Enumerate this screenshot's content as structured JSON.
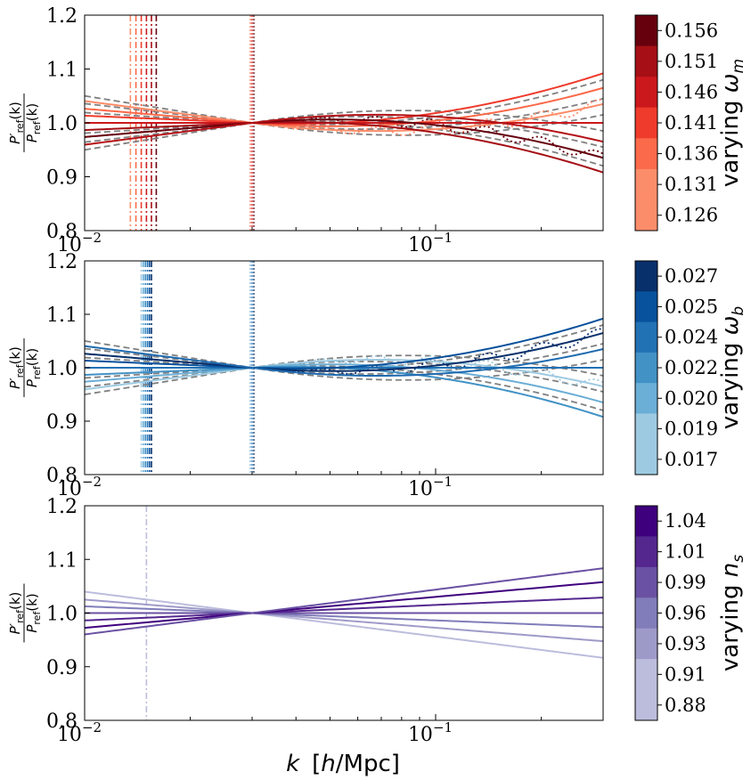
{
  "chart_data": [
    {
      "type": "line",
      "panel": "top",
      "colormap": "Reds",
      "xscale": "log",
      "xlim": [
        0.01,
        0.3
      ],
      "ylim": [
        0.8,
        1.2
      ],
      "yticks": [
        "0.8",
        "0.9",
        "1.0",
        "1.1",
        "1.2"
      ],
      "xtick_labels": [
        {
          "k": 0.01,
          "base": "10",
          "exp": "−2"
        },
        {
          "k": 0.1,
          "base": "10",
          "exp": "−1"
        }
      ],
      "ylabel": {
        "num_main": "P′",
        "num_sub": "ref",
        "num_arg": "(k)",
        "den_main": "P",
        "den_sub": "ref",
        "den_arg": "(k)"
      },
      "pivot_k": 0.03,
      "colorbar": {
        "label_text": "varying ",
        "label_symbol": "ω",
        "label_sub": "m",
        "ticks": [
          "0.156",
          "0.151",
          "0.146",
          "0.141",
          "0.136",
          "0.131",
          "0.126"
        ]
      },
      "colors": [
        "#fc8d6a",
        "#fb6a4a",
        "#ef3b2c",
        "#cb181d",
        "#a50f15",
        "#67000d",
        "#b41117"
      ],
      "slopes": [
        -0.085,
        -0.055,
        -0.028,
        0.0,
        0.028,
        0.055,
        0.085
      ],
      "curvature": 0.12,
      "dashed_color": "#808080",
      "dashed_slopes": [
        -0.105,
        -0.075,
        -0.04,
        0.04,
        0.075,
        0.105
      ],
      "dotted_amp": 0.01,
      "vertical_lines_k": [
        0.0135,
        0.014,
        0.0145,
        0.015,
        0.0155,
        0.016
      ]
    },
    {
      "type": "line",
      "panel": "middle",
      "colormap": "Blues",
      "xscale": "log",
      "xlim": [
        0.01,
        0.3
      ],
      "ylim": [
        0.8,
        1.2
      ],
      "yticks": [
        "0.8",
        "0.9",
        "1.0",
        "1.1",
        "1.2"
      ],
      "xtick_labels": [
        {
          "k": 0.01,
          "base": "10",
          "exp": "−2"
        },
        {
          "k": 0.1,
          "base": "10",
          "exp": "−1"
        }
      ],
      "ylabel": {
        "num_main": "P′",
        "num_sub": "ref",
        "num_arg": "(k)",
        "den_main": "P",
        "den_sub": "ref",
        "den_arg": "(k)"
      },
      "pivot_k": 0.03,
      "colorbar": {
        "label_text": "varying ",
        "label_symbol": "ω",
        "label_sub": "b",
        "ticks": [
          "0.027",
          "0.025",
          "0.024",
          "0.022",
          "0.020",
          "0.019",
          "0.017"
        ]
      },
      "colors": [
        "#9ecae1",
        "#6baed6",
        "#4292c6",
        "#2171b5",
        "#08519c",
        "#08306b",
        "#1f6bb0"
      ],
      "slopes": [
        0.085,
        0.055,
        0.028,
        0.0,
        -0.028,
        -0.055,
        -0.085
      ],
      "curvature": 0.12,
      "dashed_color": "#808080",
      "dashed_slopes": [
        -0.105,
        -0.075,
        -0.04,
        0.04,
        0.075,
        0.105
      ],
      "dotted_amp": 0.01,
      "vertical_lines_k": [
        0.0145,
        0.0147,
        0.0149,
        0.0151,
        0.0153,
        0.0155
      ]
    },
    {
      "type": "line",
      "panel": "bottom",
      "colormap": "Purples",
      "xscale": "log",
      "xlim": [
        0.01,
        0.3
      ],
      "ylim": [
        0.8,
        1.2
      ],
      "yticks": [
        "0.8",
        "0.9",
        "1.0",
        "1.1",
        "1.2"
      ],
      "xtick_labels": [
        {
          "k": 0.01,
          "base": "10",
          "exp": "−2"
        },
        {
          "k": 0.1,
          "base": "10",
          "exp": "−1"
        }
      ],
      "ylabel": {
        "num_main": "P′",
        "num_sub": "ref",
        "num_arg": "(k)",
        "den_main": "P",
        "den_sub": "ref",
        "den_arg": "(k)"
      },
      "pivot_k": 0.03,
      "colorbar": {
        "label_text": "varying ",
        "label_symbol": "n",
        "label_sub": "s",
        "ticks": [
          "1.04",
          "1.01",
          "0.99",
          "0.96",
          "0.93",
          "0.91",
          "0.88"
        ]
      },
      "colors": [
        "#bcbddc",
        "#9e9ac8",
        "#807dba",
        "#6a51a3",
        "#54278f",
        "#3f007d",
        "#6a51a3"
      ],
      "slopes": [
        -0.0835,
        -0.0525,
        -0.02625,
        0.0,
        0.0289,
        0.0577,
        0.0835
      ],
      "curvature": 0.0,
      "dashed_color": "#808080",
      "dashed_slopes": [],
      "dotted_amp": 0.0,
      "vertical_lines_k": [
        0.015
      ]
    }
  ],
  "xlabel": {
    "k": "k",
    "unit_open": "[",
    "unit_h": "h",
    "unit_rest": "/Mpc]"
  }
}
